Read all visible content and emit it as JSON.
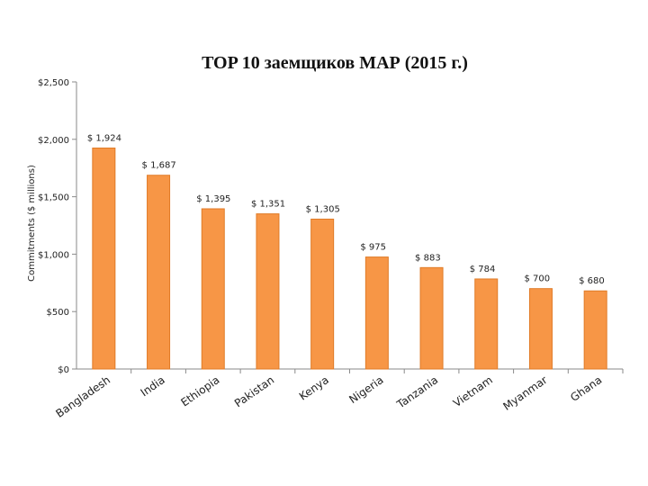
{
  "chart_data": {
    "type": "bar",
    "title": "TOP 10 заемщиков МАР (2015 г.)",
    "ylabel": "Commitments ($ millions)",
    "categories": [
      "Bangladesh",
      "India",
      "Ethiopia",
      "Pakistan",
      "Kenya",
      "Nigeria",
      "Tanzania",
      "Vietnam",
      "Myanmar",
      "Ghana"
    ],
    "values": [
      1924,
      1687,
      1395,
      1351,
      1305,
      975,
      883,
      784,
      700,
      680
    ],
    "data_labels": [
      "$ 1,924",
      "$ 1,687",
      "$ 1,395",
      "$ 1,351",
      "$ 1,305",
      "$ 975",
      "$ 883",
      "$ 784",
      "$ 700",
      "$ 680"
    ],
    "ylim": [
      0,
      2500
    ],
    "yticks": [
      0,
      500,
      1000,
      1500,
      2000,
      2500
    ],
    "ytick_labels": [
      "$0",
      "$500",
      "$1,000",
      "$1,500",
      "$2,000",
      "$2,500"
    ],
    "bar_color": "#f79646",
    "grid": false,
    "legend": "none"
  }
}
